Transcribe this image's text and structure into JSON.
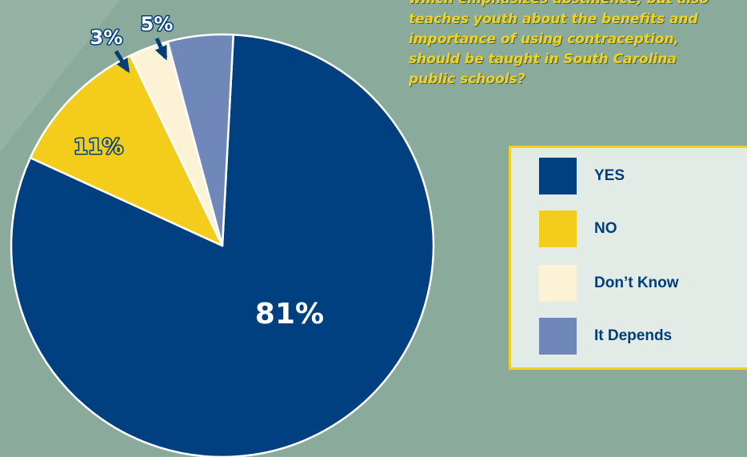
{
  "question": "which emphasizes abstinence, but also\nteaches youth about the benefits and\nimportance of using contraception,\nshould be taught in South Carolina\npublic schools?",
  "colors": {
    "background": "#8aab9b",
    "question_text": "#f2d21f",
    "legend_border": "#f2d21f",
    "legend_background": "#e2ebe6",
    "legend_text": "#003e7a",
    "arrow": "#003e7a"
  },
  "chart_data": {
    "type": "pie",
    "slices": [
      {
        "label": "YES",
        "value": 81,
        "data_label": "81%",
        "color": "#003f80"
      },
      {
        "label": "NO",
        "value": 11,
        "data_label": "11%",
        "color": "#f4cd1c"
      },
      {
        "label": "Don’t Know",
        "value": 3,
        "data_label": "3%",
        "color": "#fcf3d6"
      },
      {
        "label": "It Depends",
        "value": 5,
        "data_label": "5%",
        "color": "#6f88b9"
      }
    ],
    "legend": {
      "position": "right",
      "items": [
        "YES",
        "NO",
        "Don’t Know",
        "It Depends"
      ]
    }
  }
}
